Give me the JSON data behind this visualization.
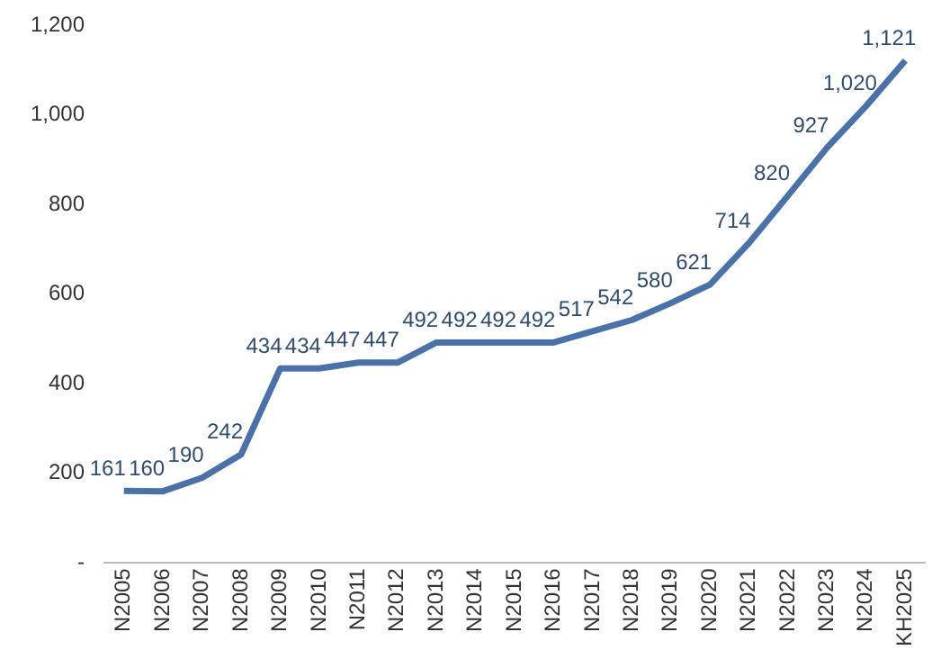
{
  "chart_data": {
    "type": "line",
    "categories": [
      "N2005",
      "N2006",
      "N2007",
      "N2008",
      "N2009",
      "N2010",
      "N2011",
      "N2012",
      "N2013",
      "N2014",
      "N2015",
      "N2016",
      "N2017",
      "N2018",
      "N2019",
      "N2020",
      "N2021",
      "N2022",
      "N2023",
      "N2024",
      "KH2025"
    ],
    "series": [
      {
        "color": "#4a72a8",
        "values": [
          161,
          160,
          190,
          242,
          434,
          434,
          447,
          447,
          492,
          492,
          492,
          492,
          517,
          542,
          580,
          621,
          714,
          820,
          927,
          1020,
          1121
        ],
        "value_labels": [
          "161",
          "160",
          "190",
          "242",
          "434",
          "434",
          "447",
          "447",
          "492",
          "492",
          "492",
          "492",
          "517",
          "542",
          "580",
          "621",
          "714",
          "820",
          "927",
          "1,020",
          "1,121"
        ]
      }
    ],
    "ylim": [
      0,
      1200
    ],
    "yticks": [
      {
        "value": 0,
        "label": "-"
      },
      {
        "value": 200,
        "label": "200"
      },
      {
        "value": 400,
        "label": "400"
      },
      {
        "value": 600,
        "label": "600"
      },
      {
        "value": 800,
        "label": "800"
      },
      {
        "value": 1000,
        "label": "1,000"
      },
      {
        "value": 1200,
        "label": "1,200"
      }
    ],
    "grid": false,
    "legend": false,
    "marker": "none",
    "line_style": "solid"
  }
}
